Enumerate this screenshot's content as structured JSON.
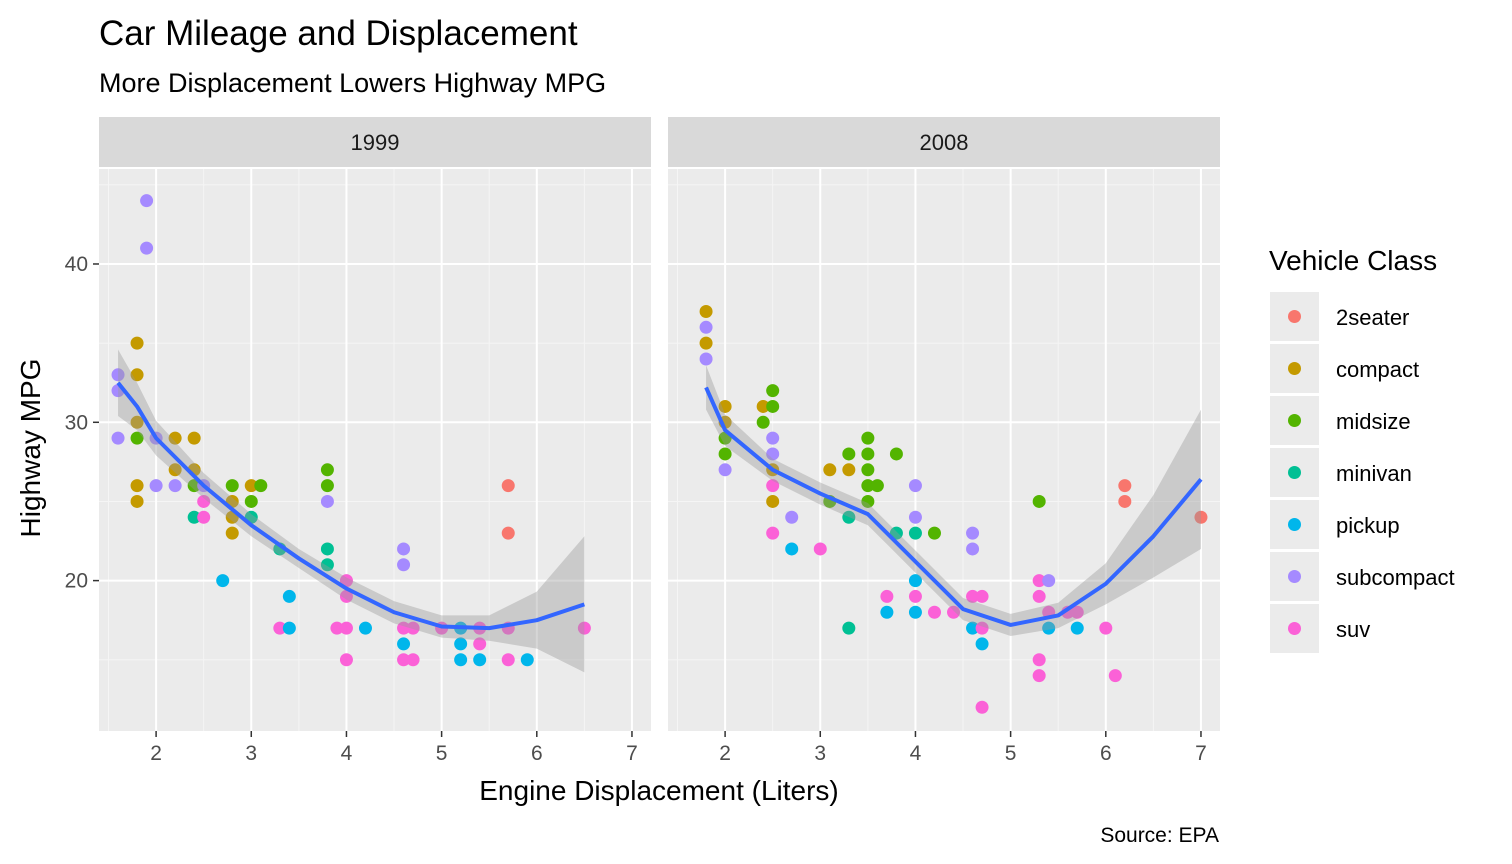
{
  "chart_data": {
    "type": "scatter",
    "title": "Car Mileage and Displacement",
    "subtitle": "More Displacement Lowers Highway MPG",
    "xlabel": "Engine Displacement (Liters)",
    "ylabel": "Highway MPG",
    "caption": "Source: EPA",
    "legend_title": "Vehicle Class",
    "legend_position": "right",
    "xlim": [
      1.4,
      7.2
    ],
    "ylim": [
      10.5,
      46
    ],
    "x_ticks": [
      2,
      3,
      4,
      5,
      6,
      7
    ],
    "y_ticks": [
      20,
      30,
      40
    ],
    "grid": true,
    "classes": [
      {
        "name": "2seater",
        "color": "#F8766D"
      },
      {
        "name": "compact",
        "color": "#C49A00"
      },
      {
        "name": "midsize",
        "color": "#53B400"
      },
      {
        "name": "minivan",
        "color": "#00C094"
      },
      {
        "name": "pickup",
        "color": "#00B6EB"
      },
      {
        "name": "subcompact",
        "color": "#A58AFF"
      },
      {
        "name": "suv",
        "color": "#FB61D7"
      }
    ],
    "smooth_color": "#3366FF",
    "band_color": "#999999",
    "facets": [
      {
        "label": "1999",
        "points": [
          {
            "x": 1.6,
            "y": 33,
            "c": "subcompact"
          },
          {
            "x": 1.6,
            "y": 32,
            "c": "subcompact"
          },
          {
            "x": 1.6,
            "y": 29,
            "c": "subcompact"
          },
          {
            "x": 1.8,
            "y": 35,
            "c": "compact"
          },
          {
            "x": 1.8,
            "y": 33,
            "c": "compact"
          },
          {
            "x": 1.8,
            "y": 30,
            "c": "compact"
          },
          {
            "x": 1.8,
            "y": 29,
            "c": "midsize"
          },
          {
            "x": 1.8,
            "y": 26,
            "c": "compact"
          },
          {
            "x": 1.8,
            "y": 25,
            "c": "compact"
          },
          {
            "x": 1.9,
            "y": 44,
            "c": "subcompact"
          },
          {
            "x": 1.9,
            "y": 41,
            "c": "subcompact"
          },
          {
            "x": 2.0,
            "y": 29,
            "c": "subcompact"
          },
          {
            "x": 2.0,
            "y": 26,
            "c": "subcompact"
          },
          {
            "x": 2.2,
            "y": 29,
            "c": "compact"
          },
          {
            "x": 2.2,
            "y": 27,
            "c": "compact"
          },
          {
            "x": 2.2,
            "y": 26,
            "c": "subcompact"
          },
          {
            "x": 2.4,
            "y": 29,
            "c": "compact"
          },
          {
            "x": 2.4,
            "y": 27,
            "c": "compact"
          },
          {
            "x": 2.4,
            "y": 26,
            "c": "midsize"
          },
          {
            "x": 2.4,
            "y": 24,
            "c": "minivan"
          },
          {
            "x": 2.5,
            "y": 26,
            "c": "subcompact"
          },
          {
            "x": 2.5,
            "y": 25,
            "c": "suv"
          },
          {
            "x": 2.5,
            "y": 24,
            "c": "suv"
          },
          {
            "x": 2.7,
            "y": 20,
            "c": "pickup"
          },
          {
            "x": 2.8,
            "y": 26,
            "c": "midsize"
          },
          {
            "x": 2.8,
            "y": 25,
            "c": "compact"
          },
          {
            "x": 2.8,
            "y": 24,
            "c": "compact"
          },
          {
            "x": 2.8,
            "y": 23,
            "c": "compact"
          },
          {
            "x": 3.0,
            "y": 26,
            "c": "compact"
          },
          {
            "x": 3.0,
            "y": 25,
            "c": "midsize"
          },
          {
            "x": 3.0,
            "y": 24,
            "c": "minivan"
          },
          {
            "x": 3.1,
            "y": 26,
            "c": "midsize"
          },
          {
            "x": 3.3,
            "y": 22,
            "c": "minivan"
          },
          {
            "x": 3.3,
            "y": 17,
            "c": "suv"
          },
          {
            "x": 3.4,
            "y": 19,
            "c": "pickup"
          },
          {
            "x": 3.4,
            "y": 17,
            "c": "pickup"
          },
          {
            "x": 3.8,
            "y": 27,
            "c": "midsize"
          },
          {
            "x": 3.8,
            "y": 26,
            "c": "midsize"
          },
          {
            "x": 3.8,
            "y": 25,
            "c": "subcompact"
          },
          {
            "x": 3.8,
            "y": 22,
            "c": "minivan"
          },
          {
            "x": 3.8,
            "y": 21,
            "c": "minivan"
          },
          {
            "x": 3.9,
            "y": 17,
            "c": "suv"
          },
          {
            "x": 4.0,
            "y": 20,
            "c": "suv"
          },
          {
            "x": 4.0,
            "y": 19,
            "c": "suv"
          },
          {
            "x": 4.0,
            "y": 17,
            "c": "suv"
          },
          {
            "x": 4.0,
            "y": 15,
            "c": "suv"
          },
          {
            "x": 4.2,
            "y": 17,
            "c": "pickup"
          },
          {
            "x": 4.6,
            "y": 22,
            "c": "subcompact"
          },
          {
            "x": 4.6,
            "y": 21,
            "c": "subcompact"
          },
          {
            "x": 4.6,
            "y": 17,
            "c": "suv"
          },
          {
            "x": 4.6,
            "y": 16,
            "c": "pickup"
          },
          {
            "x": 4.6,
            "y": 15,
            "c": "suv"
          },
          {
            "x": 4.7,
            "y": 17,
            "c": "suv"
          },
          {
            "x": 4.7,
            "y": 15,
            "c": "suv"
          },
          {
            "x": 5.0,
            "y": 17,
            "c": "suv"
          },
          {
            "x": 5.2,
            "y": 17,
            "c": "pickup"
          },
          {
            "x": 5.2,
            "y": 16,
            "c": "pickup"
          },
          {
            "x": 5.2,
            "y": 15,
            "c": "pickup"
          },
          {
            "x": 5.4,
            "y": 17,
            "c": "suv"
          },
          {
            "x": 5.4,
            "y": 16,
            "c": "suv"
          },
          {
            "x": 5.4,
            "y": 15,
            "c": "pickup"
          },
          {
            "x": 5.7,
            "y": 26,
            "c": "2seater"
          },
          {
            "x": 5.7,
            "y": 23,
            "c": "2seater"
          },
          {
            "x": 5.7,
            "y": 17,
            "c": "suv"
          },
          {
            "x": 5.7,
            "y": 15,
            "c": "suv"
          },
          {
            "x": 5.9,
            "y": 15,
            "c": "pickup"
          },
          {
            "x": 6.5,
            "y": 17,
            "c": "suv"
          }
        ],
        "smooth": [
          [
            1.6,
            32.5
          ],
          [
            1.8,
            31.0
          ],
          [
            2.0,
            29.0
          ],
          [
            2.5,
            26.0
          ],
          [
            3.0,
            23.5
          ],
          [
            3.5,
            21.4
          ],
          [
            4.0,
            19.5
          ],
          [
            4.5,
            18.0
          ],
          [
            5.0,
            17.1
          ],
          [
            5.5,
            17.0
          ],
          [
            6.0,
            17.5
          ],
          [
            6.5,
            18.5
          ]
        ],
        "band_upper": [
          34.6,
          32.5,
          30.1,
          26.8,
          24.2,
          22.0,
          20.2,
          18.7,
          17.8,
          17.8,
          19.3,
          22.8
        ],
        "band_lower": [
          30.4,
          29.5,
          27.9,
          25.2,
          22.8,
          20.8,
          18.8,
          17.3,
          16.4,
          16.2,
          15.7,
          14.2
        ]
      },
      {
        "label": "2008",
        "points": [
          {
            "x": 1.8,
            "y": 37,
            "c": "compact"
          },
          {
            "x": 1.8,
            "y": 36,
            "c": "subcompact"
          },
          {
            "x": 1.8,
            "y": 35,
            "c": "compact"
          },
          {
            "x": 1.8,
            "y": 34,
            "c": "subcompact"
          },
          {
            "x": 2.0,
            "y": 31,
            "c": "compact"
          },
          {
            "x": 2.0,
            "y": 30,
            "c": "compact"
          },
          {
            "x": 2.0,
            "y": 29,
            "c": "midsize"
          },
          {
            "x": 2.0,
            "y": 28,
            "c": "midsize"
          },
          {
            "x": 2.0,
            "y": 27,
            "c": "subcompact"
          },
          {
            "x": 2.4,
            "y": 31,
            "c": "compact"
          },
          {
            "x": 2.4,
            "y": 30,
            "c": "midsize"
          },
          {
            "x": 2.5,
            "y": 32,
            "c": "midsize"
          },
          {
            "x": 2.5,
            "y": 31,
            "c": "midsize"
          },
          {
            "x": 2.5,
            "y": 29,
            "c": "subcompact"
          },
          {
            "x": 2.5,
            "y": 28,
            "c": "subcompact"
          },
          {
            "x": 2.5,
            "y": 27,
            "c": "compact"
          },
          {
            "x": 2.5,
            "y": 26,
            "c": "suv"
          },
          {
            "x": 2.5,
            "y": 25,
            "c": "compact"
          },
          {
            "x": 2.5,
            "y": 23,
            "c": "suv"
          },
          {
            "x": 2.7,
            "y": 24,
            "c": "subcompact"
          },
          {
            "x": 2.7,
            "y": 22,
            "c": "pickup"
          },
          {
            "x": 3.0,
            "y": 22,
            "c": "suv"
          },
          {
            "x": 3.1,
            "y": 27,
            "c": "compact"
          },
          {
            "x": 3.1,
            "y": 25,
            "c": "midsize"
          },
          {
            "x": 3.3,
            "y": 28,
            "c": "midsize"
          },
          {
            "x": 3.3,
            "y": 27,
            "c": "compact"
          },
          {
            "x": 3.3,
            "y": 24,
            "c": "minivan"
          },
          {
            "x": 3.3,
            "y": 17,
            "c": "minivan"
          },
          {
            "x": 3.5,
            "y": 29,
            "c": "midsize"
          },
          {
            "x": 3.5,
            "y": 28,
            "c": "midsize"
          },
          {
            "x": 3.5,
            "y": 27,
            "c": "midsize"
          },
          {
            "x": 3.5,
            "y": 26,
            "c": "midsize"
          },
          {
            "x": 3.5,
            "y": 25,
            "c": "midsize"
          },
          {
            "x": 3.6,
            "y": 26,
            "c": "midsize"
          },
          {
            "x": 3.7,
            "y": 19,
            "c": "suv"
          },
          {
            "x": 3.7,
            "y": 18,
            "c": "pickup"
          },
          {
            "x": 3.8,
            "y": 28,
            "c": "midsize"
          },
          {
            "x": 3.8,
            "y": 23,
            "c": "minivan"
          },
          {
            "x": 4.0,
            "y": 26,
            "c": "subcompact"
          },
          {
            "x": 4.0,
            "y": 24,
            "c": "subcompact"
          },
          {
            "x": 4.0,
            "y": 23,
            "c": "minivan"
          },
          {
            "x": 4.0,
            "y": 20,
            "c": "pickup"
          },
          {
            "x": 4.0,
            "y": 19,
            "c": "suv"
          },
          {
            "x": 4.0,
            "y": 18,
            "c": "pickup"
          },
          {
            "x": 4.2,
            "y": 23,
            "c": "midsize"
          },
          {
            "x": 4.2,
            "y": 18,
            "c": "suv"
          },
          {
            "x": 4.4,
            "y": 18,
            "c": "suv"
          },
          {
            "x": 4.6,
            "y": 23,
            "c": "subcompact"
          },
          {
            "x": 4.6,
            "y": 22,
            "c": "subcompact"
          },
          {
            "x": 4.6,
            "y": 19,
            "c": "suv"
          },
          {
            "x": 4.6,
            "y": 17,
            "c": "pickup"
          },
          {
            "x": 4.7,
            "y": 19,
            "c": "suv"
          },
          {
            "x": 4.7,
            "y": 17,
            "c": "suv"
          },
          {
            "x": 4.7,
            "y": 16,
            "c": "pickup"
          },
          {
            "x": 4.7,
            "y": 12,
            "c": "suv"
          },
          {
            "x": 5.3,
            "y": 25,
            "c": "midsize"
          },
          {
            "x": 5.3,
            "y": 20,
            "c": "suv"
          },
          {
            "x": 5.3,
            "y": 19,
            "c": "suv"
          },
          {
            "x": 5.3,
            "y": 15,
            "c": "suv"
          },
          {
            "x": 5.3,
            "y": 14,
            "c": "suv"
          },
          {
            "x": 5.4,
            "y": 20,
            "c": "subcompact"
          },
          {
            "x": 5.4,
            "y": 18,
            "c": "suv"
          },
          {
            "x": 5.4,
            "y": 17,
            "c": "pickup"
          },
          {
            "x": 5.6,
            "y": 18,
            "c": "suv"
          },
          {
            "x": 5.7,
            "y": 18,
            "c": "suv"
          },
          {
            "x": 5.7,
            "y": 17,
            "c": "pickup"
          },
          {
            "x": 6.0,
            "y": 17,
            "c": "suv"
          },
          {
            "x": 6.1,
            "y": 14,
            "c": "suv"
          },
          {
            "x": 6.2,
            "y": 26,
            "c": "2seater"
          },
          {
            "x": 6.2,
            "y": 25,
            "c": "2seater"
          },
          {
            "x": 7.0,
            "y": 24,
            "c": "2seater"
          }
        ],
        "smooth": [
          [
            1.8,
            32.2
          ],
          [
            2.0,
            29.5
          ],
          [
            2.5,
            27.0
          ],
          [
            3.0,
            25.5
          ],
          [
            3.5,
            24.2
          ],
          [
            4.0,
            21.2
          ],
          [
            4.5,
            18.2
          ],
          [
            5.0,
            17.2
          ],
          [
            5.5,
            17.8
          ],
          [
            6.0,
            19.8
          ],
          [
            6.5,
            22.8
          ],
          [
            7.0,
            26.4
          ]
        ],
        "band_upper": [
          33.6,
          30.5,
          27.7,
          26.2,
          24.9,
          21.9,
          18.9,
          17.9,
          18.6,
          21.1,
          25.4,
          30.8
        ],
        "band_lower": [
          30.8,
          28.5,
          26.3,
          24.8,
          23.5,
          20.5,
          17.5,
          16.5,
          17.0,
          18.5,
          20.2,
          22.0
        ]
      }
    ]
  }
}
